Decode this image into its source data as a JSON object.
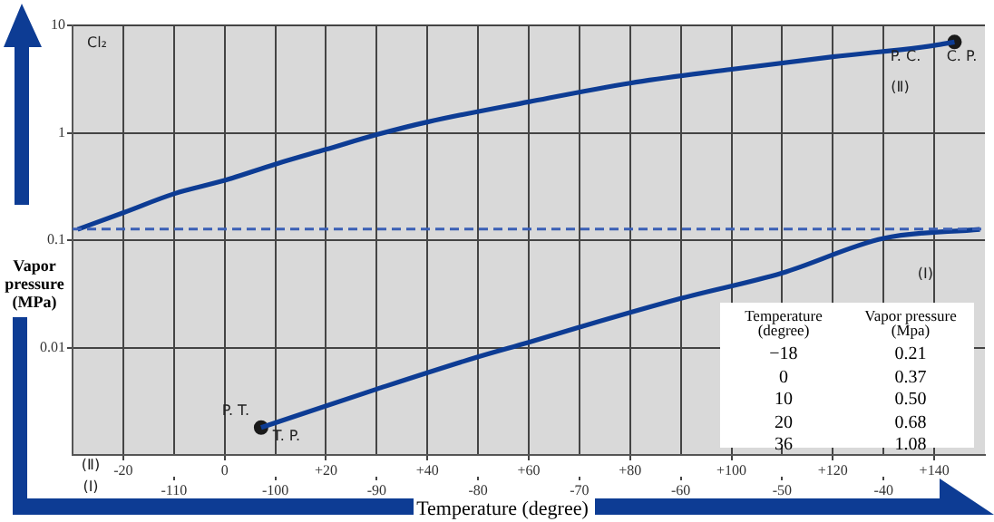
{
  "chart_data": {
    "type": "line",
    "title": "Cl₂",
    "xlabel": "Temperature (degree)",
    "ylabel": "Vapor pressure (MPa)",
    "xlim": [
      -30,
      150
    ],
    "xticks": [
      -20,
      0,
      {
        "value": 20,
        "label": "+20"
      },
      {
        "value": 40,
        "label": "+40"
      },
      {
        "value": 60,
        "label": "+60"
      },
      {
        "value": 80,
        "label": "+80"
      },
      {
        "value": 100,
        "label": "+100"
      },
      {
        "value": 120,
        "label": "+120"
      },
      {
        "value": 140,
        "label": "+140"
      }
    ],
    "x2lim": [
      -120,
      -30
    ],
    "x2ticks": [
      -110,
      -100,
      -90,
      -80,
      -70,
      -60,
      -50,
      -40
    ],
    "ylim": [
      0.001,
      10
    ],
    "yticks": [
      0.01,
      0.1,
      1,
      10
    ],
    "log": "y",
    "grid": true,
    "legend": false,
    "line_style": "solid",
    "series": [
      {
        "type": "line",
        "name": "(Ⅱ)",
        "color": "#0d3c94",
        "x": [
          -29,
          -20,
          -10,
          0,
          10,
          20,
          30,
          40,
          60,
          80,
          100,
          120,
          140,
          144
        ],
        "values": [
          0.126,
          0.18,
          0.27,
          0.36,
          0.51,
          0.7,
          0.96,
          1.26,
          1.94,
          2.9,
          3.9,
          5.1,
          6.5,
          7.0
        ]
      },
      {
        "type": "line",
        "name": "(Ⅰ)",
        "axis": "x2",
        "color": "#0d3c94",
        "x": [
          -101.4,
          -90,
          -80,
          -75,
          -70,
          -60,
          -50,
          -40,
          -30.5
        ],
        "values": [
          0.0018,
          0.0041,
          0.0082,
          0.0112,
          0.0155,
          0.0287,
          0.0495,
          0.104,
          0.126
        ]
      },
      {
        "type": "scatter",
        "color": "#1a1a1a",
        "marker": "circle",
        "x": [
          144
        ],
        "values": [
          7.0
        ]
      },
      {
        "type": "scatter",
        "axis": "x2",
        "color": "#1a1a1a",
        "marker": "circle",
        "x": [
          -101.4
        ],
        "values": [
          0.0018
        ]
      }
    ],
    "ref_lines": [
      {
        "axis": "y",
        "value": 0.127,
        "color": "#3a5fb5",
        "line_style": "dashed"
      }
    ],
    "annotations": [
      "P. T.",
      "T. P.",
      "P. C.",
      "C. P.",
      "Temperature\n(degree)",
      "Vapor pressure\n(Mpa)",
      "−18",
      "0.21",
      "0",
      "0.37",
      "10",
      "0.50",
      "20",
      "0.68",
      "36",
      "1.08"
    ]
  }
}
